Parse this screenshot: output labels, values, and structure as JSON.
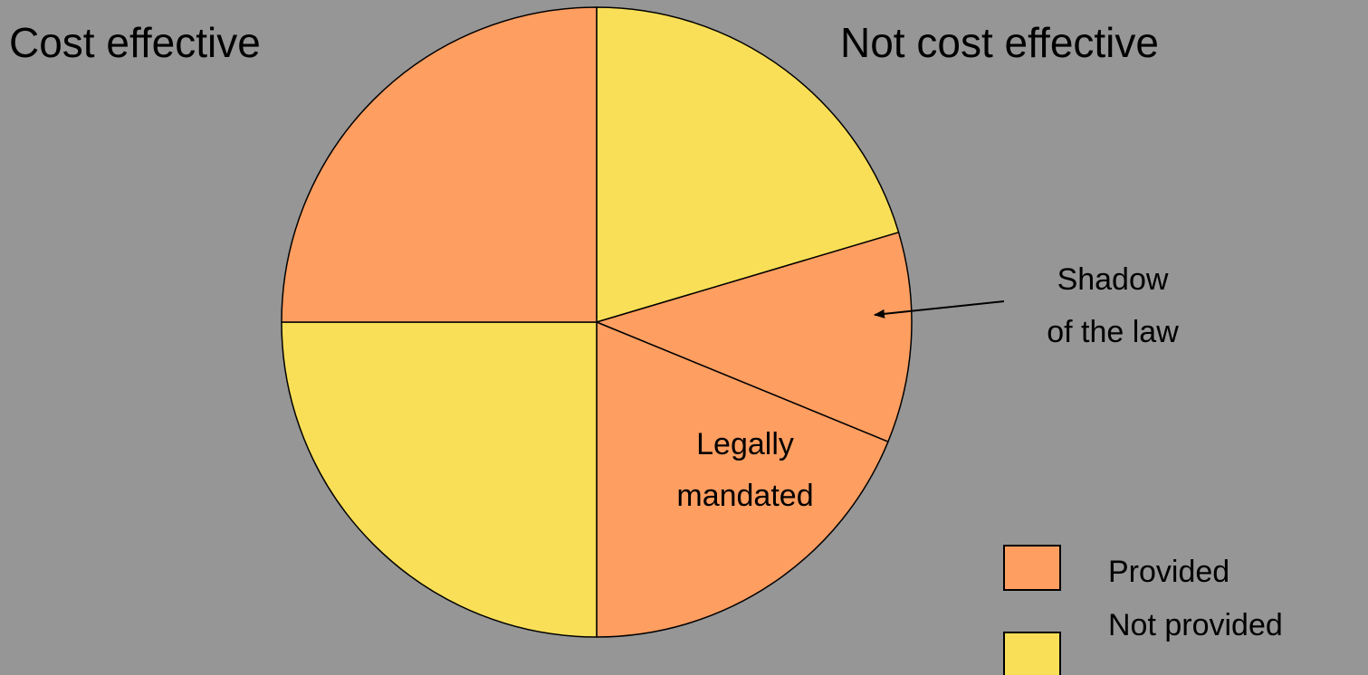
{
  "chart_data": {
    "type": "pie",
    "title": "",
    "slices": [
      {
        "label": "",
        "value": 20.4,
        "category": "Not provided",
        "color": "#f9df57"
      },
      {
        "label": "Shadow of the law",
        "value": 10.8,
        "category": "Provided",
        "color": "#ff9e61"
      },
      {
        "label": "Legally mandated",
        "value": 18.8,
        "category": "Provided",
        "color": "#ff9e61"
      },
      {
        "label": "",
        "value": 25.0,
        "category": "Not provided",
        "color": "#f9df57"
      },
      {
        "label": "",
        "value": 25.0,
        "category": "Provided",
        "color": "#ff9e61"
      }
    ],
    "start": "12 o'clock",
    "direction": "clockwise",
    "legend": {
      "position": "bottom-right",
      "entries": [
        {
          "label": "Provided",
          "color": "#ff9e61"
        },
        {
          "label": "Not provided",
          "color": "#f9df57"
        }
      ]
    }
  },
  "headers": {
    "left": "Cost effective",
    "right": "Not cost effective"
  },
  "annotations": {
    "shadow_line1": "Shadow",
    "shadow_line2": "of the law",
    "legal_line1": "Legally",
    "legal_line2": "mandated"
  },
  "colors": {
    "background": "#969696",
    "provided": "#ff9e61",
    "not_provided": "#f9df57",
    "outline": "#000000"
  }
}
